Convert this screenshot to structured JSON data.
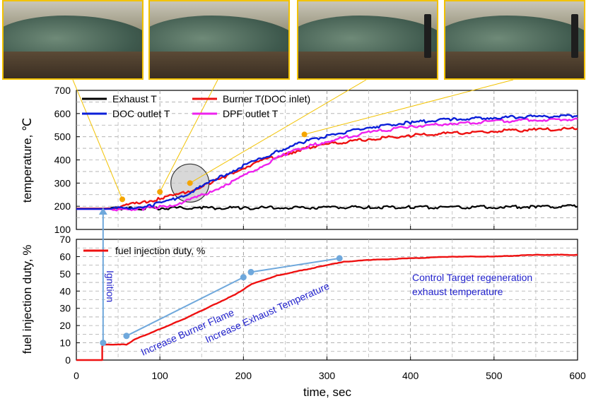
{
  "chart_data": [
    {
      "type": "line",
      "ylabel": "temperature, ℃",
      "ylim": [
        100,
        700
      ],
      "yticks": [
        "100",
        "200",
        "300",
        "400",
        "500",
        "600",
        "700"
      ],
      "xlim": [
        0,
        600
      ],
      "grid": true,
      "legend": "top-left, two columns",
      "series": [
        {
          "name": "Exhaust T",
          "color": "#000000",
          "x": [
            0,
            30,
            60,
            100,
            150,
            200,
            250,
            300,
            350,
            400,
            450,
            500,
            550,
            600
          ],
          "y": [
            190,
            190,
            190,
            192,
            193,
            193,
            194,
            195,
            196,
            196,
            196,
            197,
            198,
            199
          ]
        },
        {
          "name": "Burner T(DOC inlet)",
          "color": "#ee1111",
          "x": [
            0,
            30,
            45,
            60,
            80,
            100,
            120,
            140,
            160,
            180,
            200,
            220,
            250,
            280,
            300,
            350,
            400,
            450,
            500,
            550,
            600
          ],
          "y": [
            190,
            190,
            192,
            205,
            218,
            232,
            250,
            272,
            300,
            330,
            365,
            395,
            425,
            455,
            468,
            490,
            505,
            515,
            524,
            530,
            535
          ]
        },
        {
          "name": "DOC outlet T",
          "color": "#0b1fd8",
          "x": [
            0,
            30,
            50,
            70,
            90,
            110,
            130,
            150,
            170,
            190,
            210,
            240,
            270,
            300,
            350,
            400,
            450,
            500,
            550,
            600
          ],
          "y": [
            188,
            188,
            190,
            196,
            205,
            222,
            250,
            285,
            322,
            358,
            390,
            435,
            475,
            505,
            540,
            562,
            575,
            582,
            587,
            590
          ]
        },
        {
          "name": "DPF outlet T",
          "color": "#ee22ee",
          "x": [
            0,
            30,
            60,
            80,
            100,
            120,
            140,
            160,
            180,
            200,
            220,
            250,
            280,
            300,
            350,
            400,
            450,
            500,
            550,
            600
          ],
          "y": [
            188,
            188,
            188,
            190,
            196,
            210,
            232,
            262,
            295,
            330,
            370,
            425,
            460,
            480,
            518,
            543,
            558,
            566,
            572,
            576
          ]
        }
      ],
      "markers": [
        {
          "x": 55,
          "y": 230,
          "color": "#f5a500"
        },
        {
          "x": 100,
          "y": 262,
          "color": "#f5a500"
        },
        {
          "x": 136,
          "y": 300,
          "color": "#f5a500"
        },
        {
          "x": 273,
          "y": 510,
          "color": "#f5a500"
        }
      ],
      "highlight_circle": {
        "x": 136,
        "y": 300
      }
    },
    {
      "type": "line",
      "xlabel": "time, sec",
      "ylabel": "fuel injection duty, %",
      "ylim": [
        0,
        70
      ],
      "yticks": [
        "0",
        "10",
        "20",
        "30",
        "40",
        "50",
        "60",
        "70"
      ],
      "xlim": [
        0,
        600
      ],
      "xticks": [
        "0",
        "100",
        "200",
        "300",
        "400",
        "500",
        "600"
      ],
      "grid": true,
      "legend": "top-left",
      "series": [
        {
          "name": "fuel injection duty, %",
          "color": "#ee1111",
          "x": [
            0,
            31,
            31,
            33,
            60,
            70,
            100,
            130,
            160,
            190,
            210,
            240,
            280,
            300,
            320,
            350,
            400,
            450,
            500,
            550,
            600
          ],
          "y": [
            0,
            0,
            8,
            9,
            9,
            12,
            18,
            24,
            31,
            38,
            44,
            49,
            53,
            55,
            57,
            58,
            59,
            60,
            60,
            61,
            61
          ]
        }
      ],
      "markers": [
        {
          "x": 32,
          "y": 10,
          "color": "#6fa8dc"
        },
        {
          "x": 60,
          "y": 14,
          "color": "#6fa8dc"
        },
        {
          "x": 200,
          "y": 48,
          "color": "#6fa8dc"
        },
        {
          "x": 209,
          "y": 51,
          "color": "#6fa8dc"
        },
        {
          "x": 315,
          "y": 59,
          "color": "#6fa8dc"
        }
      ],
      "annotations": [
        {
          "text": "Ignition",
          "color": "#2222cc"
        },
        {
          "text": "Increase Burner Flame",
          "color": "#2222cc"
        },
        {
          "text": "Increase Exhaust Temperature",
          "color": "#2222cc"
        },
        {
          "text": "Control Target regeneration",
          "color": "#2222cc"
        },
        {
          "text": "exhaust temperature",
          "color": "#2222cc"
        }
      ]
    }
  ]
}
